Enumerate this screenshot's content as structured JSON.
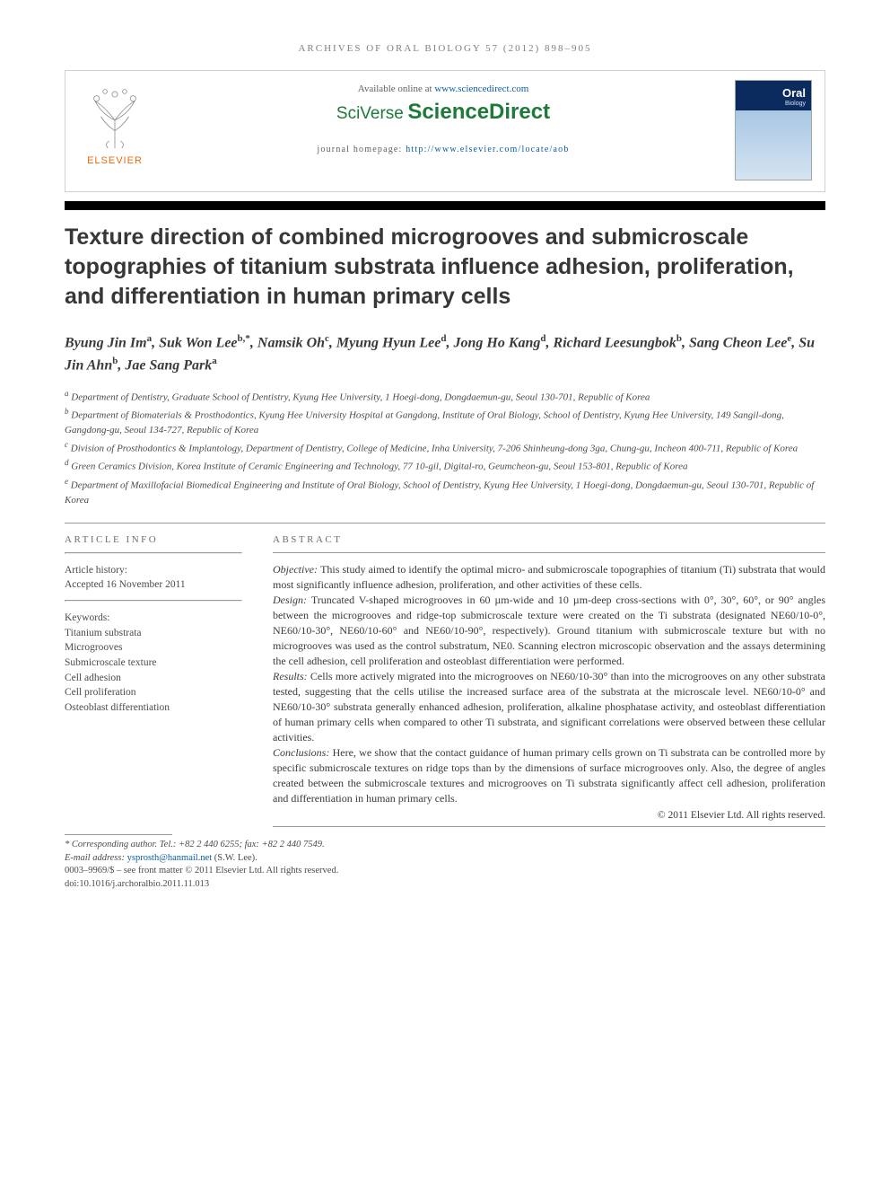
{
  "running_head": "ARCHIVES OF ORAL BIOLOGY 57 (2012) 898–905",
  "header": {
    "available_prefix": "Available online at ",
    "available_url": "www.sciencedirect.com",
    "sciverse": "SciVerse",
    "sciencedirect": "ScienceDirect",
    "publisher_word": "ELSEVIER",
    "homepage_prefix": "journal homepage: ",
    "homepage_url": "http://www.elsevier.com/locate/aob",
    "cover_title": "Oral",
    "cover_sub": "Biology"
  },
  "title": "Texture direction of combined microgrooves and submicroscale topographies of titanium substrata influence adhesion, proliferation, and differentiation in human primary cells",
  "authors_html": "Byung Jin Im<sup>a</sup>, Suk Won Lee<sup>b,*</sup>, Namsik Oh<sup>c</sup>, Myung Hyun Lee<sup>d</sup>, Jong Ho Kang<sup>d</sup>, Richard Leesungbok<sup>b</sup>, Sang Cheon Lee<sup>e</sup>, Su Jin Ahn<sup>b</sup>, Jae Sang Park<sup>a</sup>",
  "affiliations": [
    "<sup>a</sup> Department of Dentistry, Graduate School of Dentistry, Kyung Hee University, 1 Hoegi-dong, Dongdaemun-gu, Seoul 130-701, Republic of Korea",
    "<sup>b</sup> Department of Biomaterials & Prosthodontics, Kyung Hee University Hospital at Gangdong, Institute of Oral Biology, School of Dentistry, Kyung Hee University, 149 Sangil-dong, Gangdong-gu, Seoul 134-727, Republic of Korea",
    "<sup>c</sup> Division of Prosthodontics & Implantology, Department of Dentistry, College of Medicine, Inha University, 7-206 Shinheung-dong 3ga, Chung-gu, Incheon 400-711, Republic of Korea",
    "<sup>d</sup> Green Ceramics Division, Korea Institute of Ceramic Engineering and Technology, 77 10-gil, Digital-ro, Geumcheon-gu, Seoul 153-801, Republic of Korea",
    "<sup>e</sup> Department of Maxillofacial Biomedical Engineering and Institute of Oral Biology, School of Dentistry, Kyung Hee University, 1 Hoegi-dong, Dongdaemun-gu, Seoul 130-701, Republic of Korea"
  ],
  "article_info": {
    "head": "ARTICLE INFO",
    "history_label": "Article history:",
    "history_text": "Accepted 16 November 2011",
    "keywords_label": "Keywords:",
    "keywords": [
      "Titanium substrata",
      "Microgrooves",
      "Submicroscale texture",
      "Cell adhesion",
      "Cell proliferation",
      "Osteoblast differentiation"
    ]
  },
  "abstract": {
    "head": "ABSTRACT",
    "sections": [
      {
        "label": "Objective:",
        "text": "This study aimed to identify the optimal micro- and submicroscale topographies of titanium (Ti) substrata that would most significantly influence adhesion, proliferation, and other activities of these cells."
      },
      {
        "label": "Design:",
        "text": "Truncated V-shaped microgrooves in 60 µm-wide and 10 µm-deep cross-sections with 0°, 30°, 60°, or 90° angles between the microgrooves and ridge-top submicroscale texture were created on the Ti substrata (designated NE60/10-0°, NE60/10-30°, NE60/10-60° and NE60/10-90°, respectively). Ground titanium with submicroscale texture but with no microgrooves was used as the control substratum, NE0. Scanning electron microscopic observation and the assays determining the cell adhesion, cell proliferation and osteoblast differentiation were performed."
      },
      {
        "label": "Results:",
        "text": "Cells more actively migrated into the microgrooves on NE60/10-30° than into the microgrooves on any other substrata tested, suggesting that the cells utilise the increased surface area of the substrata at the microscale level. NE60/10-0° and NE60/10-30° substrata generally enhanced adhesion, proliferation, alkaline phosphatase activity, and osteoblast differentiation of human primary cells when compared to other Ti substrata, and significant correlations were observed between these cellular activities."
      },
      {
        "label": "Conclusions:",
        "text": "Here, we show that the contact guidance of human primary cells grown on Ti substrata can be controlled more by specific submicroscale textures on ridge tops than by the dimensions of surface microgrooves only. Also, the degree of angles created between the submicroscale textures and microgrooves on Ti substrata significantly affect cell adhesion, proliferation and differentiation in human primary cells."
      }
    ],
    "copyright": "© 2011 Elsevier Ltd. All rights reserved."
  },
  "footnotes": {
    "corr": "* Corresponding author. Tel.: +82 2 440 6255; fax: +82 2 440 7549.",
    "email_label": "E-mail address: ",
    "email": "ysprosth@hanmail.net",
    "email_person": " (S.W. Lee).",
    "issn_line": "0003–9969/$ – see front matter © 2011 Elsevier Ltd. All rights reserved.",
    "doi_line": "doi:10.1016/j.archoralbio.2011.11.013"
  },
  "colors": {
    "elsevier_orange": "#eb6b0b",
    "sciverse_green": "#1d7a3a",
    "link_blue": "#0b5da8",
    "text": "#3a3a3a",
    "muted": "#6e6e6e"
  }
}
